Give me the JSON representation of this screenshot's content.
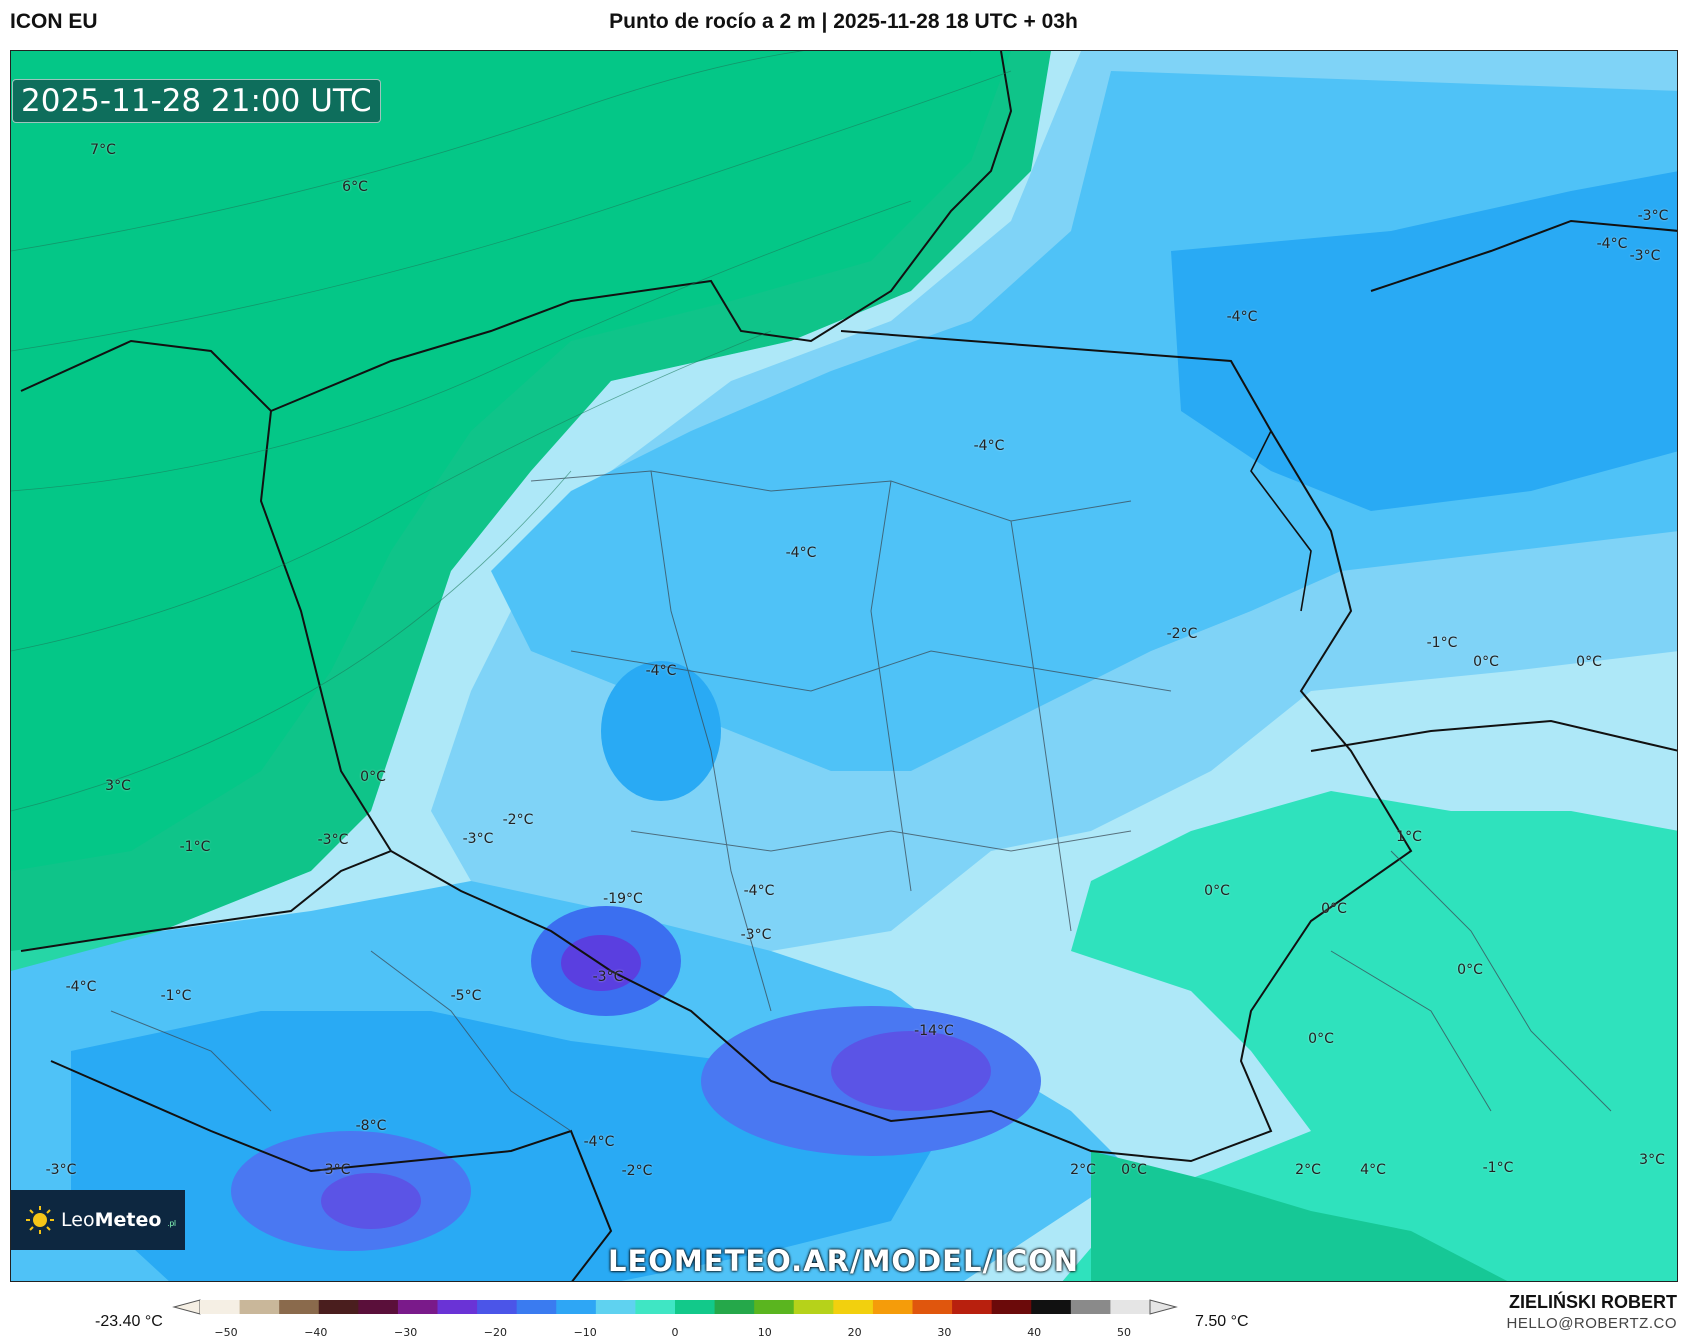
{
  "header": {
    "model": "ICON EU",
    "title": "Punto de rocío a 2 m | 2025-11-28 18 UTC + 03h"
  },
  "timestamp": "2025-11-28 21:00 UTC",
  "logo": {
    "brand_light": "Leo",
    "brand_bold": "Meteo",
    "suffix": ".pl"
  },
  "watermark": "LEOMETEO.AR/MODEL/ICON",
  "author": {
    "name": "ZIELIŃSKI ROBERT",
    "email": "HELLO@ROBERTZ.CO"
  },
  "colorbar": {
    "min_label": "-23.40 °C",
    "max_label": "7.50 °C",
    "ticks": [
      "−50",
      "−40",
      "−30",
      "−20",
      "−10",
      "0",
      "10",
      "20",
      "30",
      "40",
      "50"
    ],
    "colors": [
      "#f5efe4",
      "#c9b79a",
      "#8a6a4c",
      "#4a1e1e",
      "#5a0f3a",
      "#7a1a8a",
      "#6a33d6",
      "#4b55e8",
      "#3a7bf0",
      "#2ea6f5",
      "#5fd2f0",
      "#3fe6c4",
      "#12c98a",
      "#25a84a",
      "#5ab51f",
      "#b6d21a",
      "#f2d00e",
      "#f59c0a",
      "#e0560d",
      "#b8200e",
      "#6b0a0a",
      "#111111",
      "#8a8a8a",
      "#e5e5e5"
    ]
  },
  "contour_labels": [
    {
      "text": "7°C"
    },
    {
      "text": "6°C"
    },
    {
      "text": "3°C"
    },
    {
      "text": "0°C"
    },
    {
      "text": "-1°C"
    },
    {
      "text": "-3°C"
    },
    {
      "text": "-3°C"
    },
    {
      "text": "-2°C"
    },
    {
      "text": "-19°C"
    },
    {
      "text": "-4°C"
    },
    {
      "text": "-4°C"
    },
    {
      "text": "-4°C"
    },
    {
      "text": "-4°C"
    },
    {
      "text": "-4°C"
    },
    {
      "text": "-3°C"
    },
    {
      "text": "-4°C"
    },
    {
      "text": "-2°C"
    },
    {
      "text": "-1°C"
    },
    {
      "text": "0°C"
    },
    {
      "text": "0°C"
    },
    {
      "text": "1°C"
    },
    {
      "text": "0°C"
    },
    {
      "text": "0°C"
    },
    {
      "text": "0°C"
    },
    {
      "text": "0°C"
    },
    {
      "text": "-4°C"
    },
    {
      "text": "-3°C"
    },
    {
      "text": "-3°C"
    },
    {
      "text": "-1°C"
    },
    {
      "text": "-5°C"
    },
    {
      "text": "-14°C"
    },
    {
      "text": "-8°C"
    },
    {
      "text": "-3°C"
    },
    {
      "text": "-4°C"
    },
    {
      "text": "-3°C"
    },
    {
      "text": "-2°C"
    },
    {
      "text": "2°C"
    },
    {
      "text": "0°C"
    },
    {
      "text": "2°C"
    },
    {
      "text": "4°C"
    },
    {
      "text": "-1°C"
    },
    {
      "text": "3°C"
    },
    {
      "text": "-3°C"
    }
  ]
}
